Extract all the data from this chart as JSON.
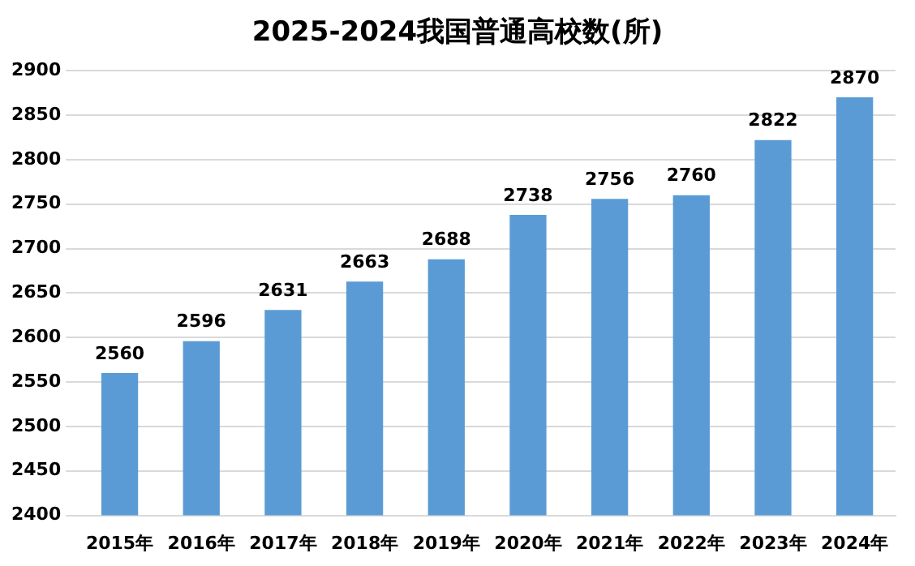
{
  "chart_data": {
    "type": "bar",
    "title": "2025-2024我国普通高校数(所)",
    "categories": [
      "2015年",
      "2016年",
      "2017年",
      "2018年",
      "2019年",
      "2020年",
      "2021年",
      "2022年",
      "2023年",
      "2024年"
    ],
    "values": [
      2560,
      2596,
      2631,
      2663,
      2688,
      2738,
      2756,
      2760,
      2822,
      2870
    ],
    "color": "#5b9bd5",
    "ylim": [
      2400,
      2900
    ],
    "yticks": [
      2400,
      2450,
      2500,
      2550,
      2600,
      2650,
      2700,
      2750,
      2800,
      2850,
      2900
    ],
    "grid": "y",
    "data_labels": true
  }
}
